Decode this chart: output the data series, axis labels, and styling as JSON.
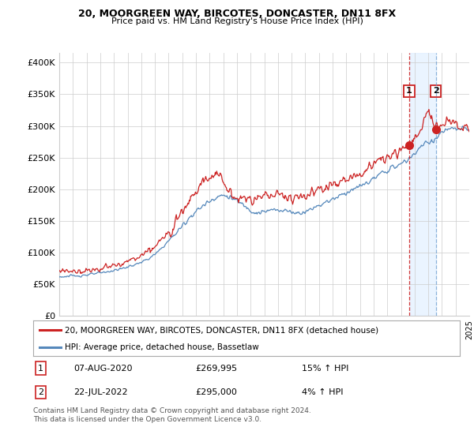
{
  "title": "20, MOORGREEN WAY, BIRCOTES, DONCASTER, DN11 8FX",
  "subtitle": "Price paid vs. HM Land Registry's House Price Index (HPI)",
  "ytick_labels": [
    "£0",
    "£50K",
    "£100K",
    "£150K",
    "£200K",
    "£250K",
    "£300K",
    "£350K",
    "£400K"
  ],
  "yticks": [
    0,
    50000,
    100000,
    150000,
    200000,
    250000,
    300000,
    350000,
    400000
  ],
  "ylim": [
    0,
    415000
  ],
  "xlim_start": 1995,
  "xlim_end": 2025,
  "legend_line1": "20, MOORGREEN WAY, BIRCOTES, DONCASTER, DN11 8FX (detached house)",
  "legend_line2": "HPI: Average price, detached house, Bassetlaw",
  "point1_label": "1",
  "point1_date": "07-AUG-2020",
  "point1_price": "£269,995",
  "point1_hpi": "15% ↑ HPI",
  "point1_year": 2020.6,
  "point1_value": 269995,
  "point2_label": "2",
  "point2_date": "22-JUL-2022",
  "point2_price": "£295,000",
  "point2_hpi": "4% ↑ HPI",
  "point2_year": 2022.55,
  "point2_value": 295000,
  "footer": "Contains HM Land Registry data © Crown copyright and database right 2024.\nThis data is licensed under the Open Government Licence v3.0.",
  "red_color": "#cc2222",
  "blue_color": "#5588bb",
  "shade_color": "#ddeeff",
  "grid_color": "#cccccc",
  "bg_color": "#ffffff",
  "vline1_color": "#cc2222",
  "vline2_color": "#6699cc"
}
